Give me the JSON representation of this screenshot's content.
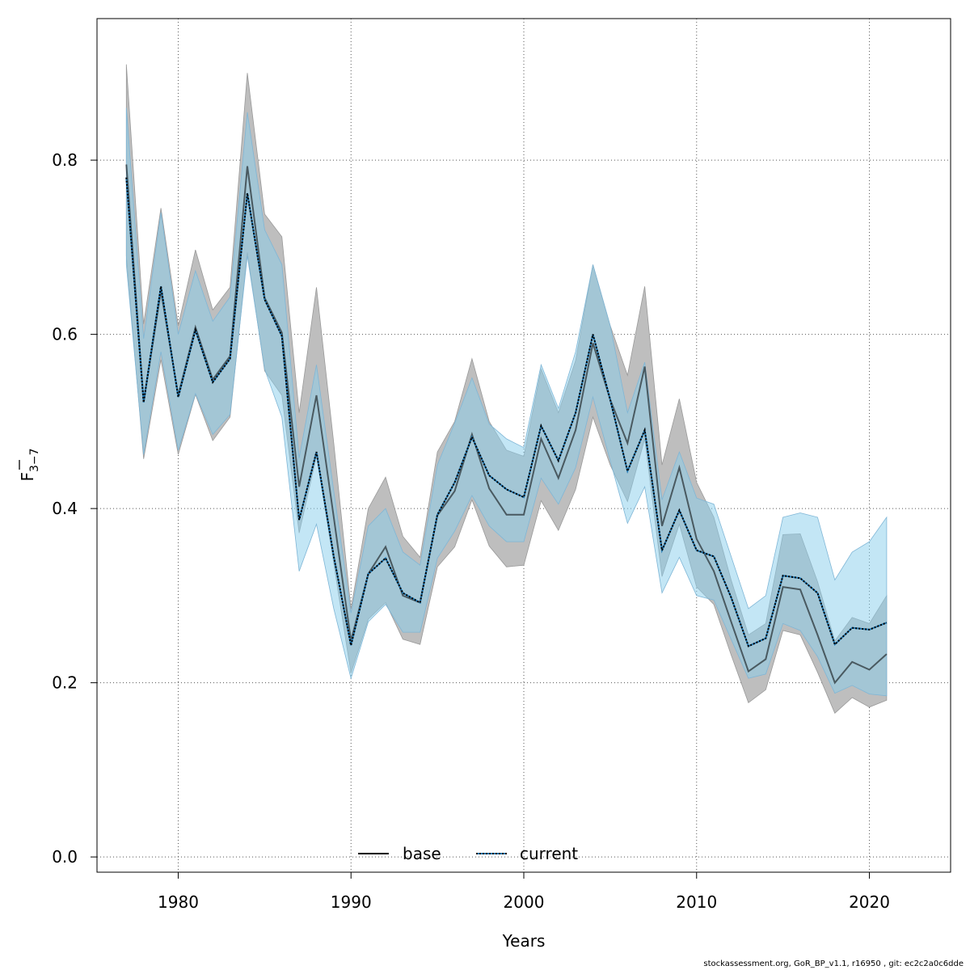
{
  "chart_data": {
    "type": "line",
    "xlabel": "Years",
    "ylabel": "F",
    "ylabel_subscript": "3−7",
    "xlim": [
      1975.3,
      2024.7
    ],
    "ylim": [
      -0.0175,
      0.9625
    ],
    "xticks": [
      1980,
      1990,
      2000,
      2010,
      2020
    ],
    "yticks": [
      0.0,
      0.2,
      0.4,
      0.6,
      0.8
    ],
    "ytick_labels": [
      "0.0",
      "0.2",
      "0.4",
      "0.6",
      "0.8"
    ],
    "grid": true,
    "legend_position": "bottom-center",
    "x": [
      1977,
      1978,
      1979,
      1980,
      1981,
      1982,
      1983,
      1984,
      1985,
      1986,
      1987,
      1988,
      1989,
      1990,
      1991,
      1992,
      1993,
      1994,
      1995,
      1996,
      1997,
      1998,
      1999,
      2000,
      2001,
      2002,
      2003,
      2004,
      2005,
      2006,
      2007,
      2008,
      2009,
      2010,
      2011,
      2012,
      2013,
      2014,
      2015,
      2016,
      2017,
      2018,
      2019,
      2020,
      2021
    ],
    "series": [
      {
        "name": "base",
        "color": "#000000",
        "dash": "solid",
        "band_color": "#bebebe",
        "values": [
          0.795,
          0.522,
          0.65,
          0.53,
          0.608,
          0.548,
          0.575,
          0.793,
          0.642,
          0.602,
          0.425,
          0.53,
          0.39,
          0.248,
          0.325,
          0.356,
          0.3,
          0.292,
          0.392,
          0.42,
          0.485,
          0.423,
          0.393,
          0.393,
          0.48,
          0.435,
          0.49,
          0.59,
          0.525,
          0.475,
          0.563,
          0.38,
          0.447,
          0.365,
          0.328,
          0.27,
          0.213,
          0.227,
          0.31,
          0.307,
          0.255,
          0.2,
          0.224,
          0.215,
          0.233
        ],
        "lower": [
          0.69,
          0.457,
          0.571,
          0.462,
          0.531,
          0.478,
          0.505,
          0.694,
          0.558,
          0.53,
          0.372,
          0.46,
          0.337,
          0.211,
          0.273,
          0.292,
          0.25,
          0.244,
          0.333,
          0.356,
          0.41,
          0.357,
          0.333,
          0.335,
          0.409,
          0.375,
          0.422,
          0.505,
          0.45,
          0.408,
          0.48,
          0.322,
          0.382,
          0.31,
          0.29,
          0.232,
          0.177,
          0.192,
          0.26,
          0.255,
          0.212,
          0.165,
          0.183,
          0.172,
          0.18
        ],
        "upper": [
          0.91,
          0.612,
          0.745,
          0.61,
          0.697,
          0.628,
          0.654,
          0.9,
          0.738,
          0.712,
          0.51,
          0.654,
          0.475,
          0.285,
          0.4,
          0.436,
          0.368,
          0.344,
          0.465,
          0.5,
          0.572,
          0.5,
          0.467,
          0.46,
          0.56,
          0.51,
          0.57,
          0.68,
          0.61,
          0.553,
          0.655,
          0.45,
          0.526,
          0.43,
          0.39,
          0.318,
          0.255,
          0.268,
          0.37,
          0.371,
          0.316,
          0.248,
          0.275,
          0.268,
          0.3
        ]
      },
      {
        "name": "current",
        "color": "#000000",
        "dash_color": "#1f78b4",
        "dash": "dotted",
        "band_color": "#87ceeb",
        "values": [
          0.78,
          0.522,
          0.655,
          0.528,
          0.605,
          0.545,
          0.572,
          0.762,
          0.64,
          0.598,
          0.387,
          0.465,
          0.345,
          0.243,
          0.325,
          0.343,
          0.303,
          0.292,
          0.393,
          0.43,
          0.482,
          0.438,
          0.422,
          0.413,
          0.495,
          0.455,
          0.51,
          0.6,
          0.525,
          0.443,
          0.49,
          0.352,
          0.398,
          0.352,
          0.345,
          0.298,
          0.242,
          0.251,
          0.323,
          0.32,
          0.303,
          0.244,
          0.263,
          0.261,
          0.269
        ],
        "lower": [
          0.68,
          0.462,
          0.58,
          0.467,
          0.532,
          0.485,
          0.508,
          0.69,
          0.56,
          0.505,
          0.328,
          0.382,
          0.285,
          0.205,
          0.27,
          0.29,
          0.258,
          0.258,
          0.343,
          0.374,
          0.415,
          0.38,
          0.362,
          0.362,
          0.435,
          0.405,
          0.447,
          0.528,
          0.455,
          0.383,
          0.425,
          0.303,
          0.344,
          0.3,
          0.295,
          0.25,
          0.205,
          0.21,
          0.268,
          0.26,
          0.23,
          0.188,
          0.197,
          0.187,
          0.185
        ],
        "upper": [
          0.86,
          0.595,
          0.74,
          0.6,
          0.673,
          0.615,
          0.643,
          0.855,
          0.72,
          0.68,
          0.458,
          0.565,
          0.42,
          0.28,
          0.38,
          0.4,
          0.35,
          0.335,
          0.45,
          0.498,
          0.55,
          0.497,
          0.48,
          0.47,
          0.565,
          0.515,
          0.58,
          0.68,
          0.61,
          0.51,
          0.568,
          0.41,
          0.465,
          0.412,
          0.405,
          0.345,
          0.285,
          0.3,
          0.39,
          0.395,
          0.39,
          0.318,
          0.35,
          0.362,
          0.39
        ]
      }
    ]
  },
  "footer": "stockassessment.org, GoR_BP_v1.1, r16950 , git: ec2c2a0c6dde"
}
